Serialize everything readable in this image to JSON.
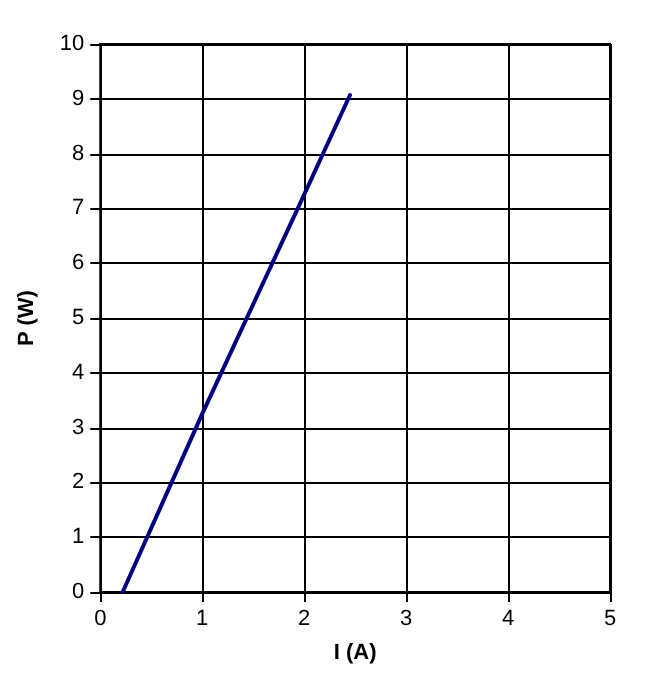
{
  "chart_data": {
    "type": "line",
    "xlabel": "I (A)",
    "ylabel": "P (W)",
    "series": [
      {
        "color": "#000080",
        "x": [
          0.22,
          1,
          2,
          2.45
        ],
        "values": [
          0,
          3.25,
          7.25,
          9.07
        ]
      }
    ],
    "xlim": [
      0,
      5
    ],
    "xticks": [
      0,
      1,
      2,
      3,
      4,
      5
    ],
    "ylim": [
      0,
      10
    ],
    "yticks": [
      0,
      1,
      2,
      3,
      4,
      5,
      6,
      7,
      8,
      9,
      10
    ],
    "grid": true,
    "marker": "none",
    "line_style": "solid"
  }
}
